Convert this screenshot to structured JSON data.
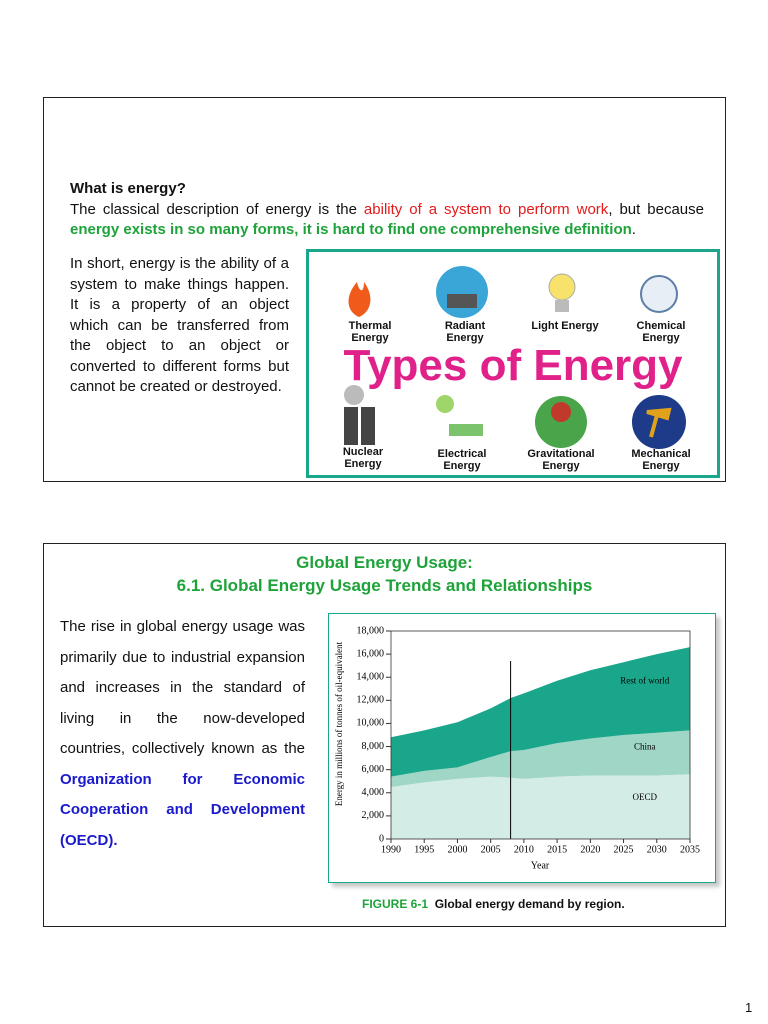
{
  "slide1": {
    "heading": "What is energy?",
    "intro": [
      "The classical description of energy is the ",
      "ability of a system to perform work",
      ", but because ",
      "energy exists in so many forms, it is hard to find one comprehensive definition",
      "."
    ],
    "body": "In short, energy is the ability of a system to make things happen. It is a property of an object which can be transferred from the object to an object or converted to different forms but cannot be created or destroyed.",
    "image": {
      "title": "Types of Energy",
      "types": [
        "Thermal Energy",
        "Radiant Energy",
        "Light Energy",
        "Chemical Energy",
        "Nuclear Energy",
        "Electrical Energy",
        "Gravitational Energy",
        "Mechanical Energy"
      ]
    }
  },
  "slide2": {
    "title": "Global Energy Usage:",
    "subtitle": "6.1. Global Energy Usage Trends and Relationships",
    "body": [
      "The rise in global energy usage was primarily due to industrial expansion and increases in the standard of living in the now-developed countries, collectively known as the ",
      "Organization for Economic Cooperation and Development (OECD)."
    ],
    "caption_label": "FIGURE 6-1",
    "caption_text": "Global energy demand by region."
  },
  "chart_data": {
    "type": "area",
    "stacked": true,
    "x_label": "Year",
    "y_label": "Energy in millions of tonnes of oil-equivalent",
    "x": [
      1990,
      1995,
      2000,
      2005,
      2008,
      2010,
      2015,
      2020,
      2025,
      2030,
      2035
    ],
    "series": [
      {
        "name": "OECD",
        "color": "#d4ece6",
        "values": [
          4500,
          4900,
          5200,
          5400,
          5300,
          5200,
          5400,
          5500,
          5500,
          5500,
          5600
        ]
      },
      {
        "name": "China",
        "color": "#9fd6c6",
        "values": [
          900,
          1000,
          1000,
          1700,
          2300,
          2500,
          2900,
          3200,
          3500,
          3700,
          3800
        ]
      },
      {
        "name": "Rest of world",
        "color": "#1aa68b",
        "values": [
          3400,
          3500,
          3900,
          4200,
          4600,
          4900,
          5400,
          5900,
          6300,
          6800,
          7200
        ]
      }
    ],
    "divider_x": 2008,
    "xlim": [
      1990,
      2035
    ],
    "xticks": [
      1990,
      1995,
      2000,
      2005,
      2010,
      2015,
      2020,
      2025,
      2030,
      2035
    ],
    "ylim": [
      0,
      18000
    ],
    "yticks": [
      0,
      {
        "value": 2000,
        "label": "2,000"
      },
      {
        "value": 4000,
        "label": "4,000"
      },
      {
        "value": 6000,
        "label": "6,000"
      },
      {
        "value": 8000,
        "label": "8,000"
      },
      {
        "value": 10000,
        "label": "10,000"
      },
      {
        "value": 12000,
        "label": "12,000"
      },
      {
        "value": 14000,
        "label": "14,000"
      },
      {
        "value": 16000,
        "label": "16,000"
      },
      {
        "value": 18000,
        "label": "18,000"
      }
    ]
  },
  "page_number": "1"
}
